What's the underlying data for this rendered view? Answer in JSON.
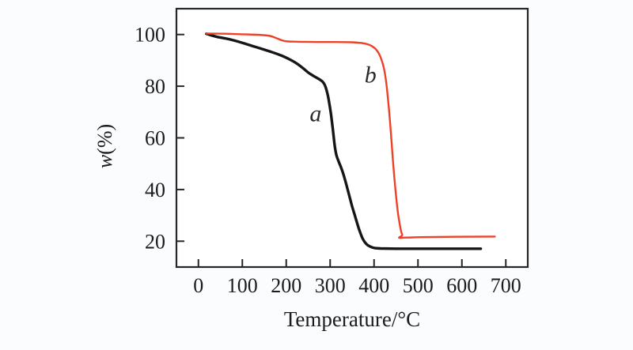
{
  "figure": {
    "background": "#fbfcfe",
    "plot_background": "#ffffff",
    "frame_color": "#262626",
    "text_color": "#1c1c1c"
  },
  "chart_data": {
    "type": "line",
    "title": "",
    "xlabel": "Temperature/°C",
    "ylabel": "w(%)",
    "ylabel_parts": {
      "symbol": "w",
      "suffix": "(%)"
    },
    "xlim": [
      -50,
      750
    ],
    "ylim": [
      10,
      110
    ],
    "x_ticks": [
      0,
      100,
      200,
      300,
      400,
      500,
      600,
      700
    ],
    "y_ticks": [
      20,
      40,
      60,
      80,
      100
    ],
    "grid": false,
    "legend_position": "none-inline-curve-labels",
    "series": [
      {
        "name": "a",
        "label": "a",
        "color": "#161616",
        "stroke_width": 3.4,
        "label_at": {
          "x": 267,
          "y": 69.5
        },
        "points": [
          [
            18,
            100.3
          ],
          [
            40,
            99.2
          ],
          [
            70,
            98.2
          ],
          [
            100,
            96.8
          ],
          [
            130,
            95.2
          ],
          [
            160,
            93.6
          ],
          [
            187,
            92.0
          ],
          [
            205,
            90.6
          ],
          [
            222,
            89.0
          ],
          [
            238,
            87.0
          ],
          [
            250,
            85.3
          ],
          [
            260,
            84.2
          ],
          [
            270,
            83.2
          ],
          [
            278,
            82.4
          ],
          [
            284,
            81.5
          ],
          [
            289,
            80.0
          ],
          [
            294,
            77.0
          ],
          [
            298,
            73.5
          ],
          [
            302,
            69.0
          ],
          [
            306,
            63.5
          ],
          [
            310,
            57.5
          ],
          [
            314,
            53.5
          ],
          [
            319,
            51.0
          ],
          [
            325,
            48.5
          ],
          [
            330,
            46.0
          ],
          [
            336,
            42.5
          ],
          [
            343,
            38.0
          ],
          [
            350,
            33.5
          ],
          [
            358,
            29.0
          ],
          [
            366,
            24.5
          ],
          [
            374,
            21.0
          ],
          [
            382,
            19.0
          ],
          [
            390,
            18.0
          ],
          [
            400,
            17.4
          ],
          [
            415,
            17.2
          ],
          [
            450,
            17.1
          ],
          [
            500,
            17.1
          ],
          [
            560,
            17.1
          ],
          [
            643,
            17.1
          ]
        ]
      },
      {
        "name": "b",
        "label": "b",
        "color": "#ee4128",
        "stroke_width": 2.4,
        "label_at": {
          "x": 392,
          "y": 84.5
        },
        "points": [
          [
            18,
            100.4
          ],
          [
            60,
            100.3
          ],
          [
            100,
            100.1
          ],
          [
            135,
            99.9
          ],
          [
            158,
            99.6
          ],
          [
            170,
            99.1
          ],
          [
            182,
            98.3
          ],
          [
            193,
            97.6
          ],
          [
            205,
            97.3
          ],
          [
            230,
            97.2
          ],
          [
            270,
            97.1
          ],
          [
            310,
            97.1
          ],
          [
            350,
            97.0
          ],
          [
            372,
            96.7
          ],
          [
            386,
            96.2
          ],
          [
            396,
            95.4
          ],
          [
            404,
            94.3
          ],
          [
            411,
            92.6
          ],
          [
            417,
            90.2
          ],
          [
            423,
            86.5
          ],
          [
            428,
            81.0
          ],
          [
            432,
            74.5
          ],
          [
            436,
            67.0
          ],
          [
            440,
            58.0
          ],
          [
            444,
            49.0
          ],
          [
            449,
            39.5
          ],
          [
            454,
            31.5
          ],
          [
            459,
            26.0
          ],
          [
            462,
            23.5
          ],
          [
            464,
            22.3
          ],
          [
            457,
            21.3
          ],
          [
            472,
            21.4
          ],
          [
            520,
            21.6
          ],
          [
            580,
            21.7
          ],
          [
            675,
            21.8
          ]
        ]
      }
    ]
  }
}
